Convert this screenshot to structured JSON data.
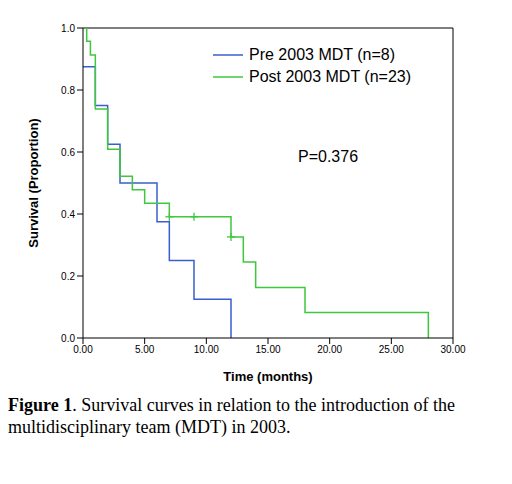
{
  "chart_data": {
    "type": "step",
    "x_label": "Time (months)",
    "y_label": "Survival (Proportion)",
    "annotation": "P=0.376",
    "caption": "Figure 1. Survival curves in relation to the introduction of the multidisciplinary team (MDT) in 2003.",
    "xlim": [
      0,
      30
    ],
    "ylim": [
      0,
      1
    ],
    "xticks": [
      {
        "value": 0,
        "label": "0.00"
      },
      {
        "value": 5,
        "label": "5.00"
      },
      {
        "value": 10,
        "label": "10.00"
      },
      {
        "value": 15,
        "label": "15.00"
      },
      {
        "value": 20,
        "label": "20.00"
      },
      {
        "value": 25,
        "label": "25.00"
      },
      {
        "value": 30,
        "label": "30.00"
      }
    ],
    "yticks": [
      {
        "value": 0,
        "label": "0.0"
      },
      {
        "value": 0.2,
        "label": "0.2"
      },
      {
        "value": 0.4,
        "label": "0.4"
      },
      {
        "value": 0.6,
        "label": "0.6"
      },
      {
        "value": 0.8,
        "label": "0.8"
      },
      {
        "value": 1,
        "label": "1.0"
      }
    ],
    "legend": "upper right",
    "series": [
      {
        "name": "Pre 2003 MDT (n=8)",
        "color": "#3a5fcd",
        "x": [
          0,
          1,
          2,
          3,
          6,
          7,
          9,
          12
        ],
        "values": [
          0.875,
          0.75,
          0.625,
          0.5,
          0.375,
          0.25,
          0.125,
          0
        ]
      },
      {
        "name": "Post 2003 MDT (n=23)",
        "color": "#3fc73f",
        "x": [
          0,
          0.3,
          0.6,
          1,
          2,
          3,
          4,
          5,
          7,
          12,
          13,
          14,
          18,
          28
        ],
        "values": [
          1,
          0.957,
          0.913,
          0.739,
          0.609,
          0.522,
          0.478,
          0.435,
          0.391,
          0.326,
          0.245,
          0.163,
          0.082,
          0
        ],
        "marker": "plus",
        "censored_x": [
          7,
          9,
          12
        ],
        "censored_y": [
          0.391,
          0.391,
          0.326
        ]
      }
    ]
  }
}
